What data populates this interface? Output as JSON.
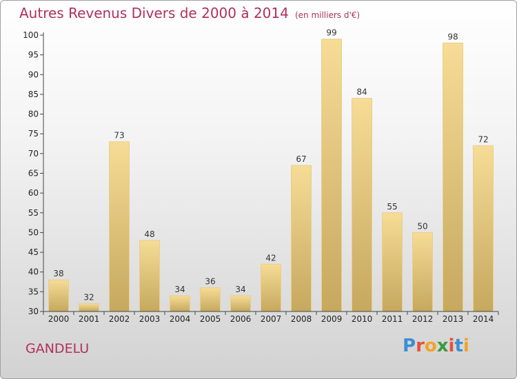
{
  "title": {
    "main": "Autres Revenus Divers de 2000 à 2014",
    "sub": "(en milliers d'€)"
  },
  "location": "GANDELU",
  "logo": {
    "text": "Proxiti",
    "letter_colors": [
      "#3a8fd4",
      "#e8503c",
      "#f2a32c",
      "#3a9a3a",
      "#e8503c",
      "#3a8fd4",
      "#f2a32c"
    ]
  },
  "colors": {
    "title": "#b0305a",
    "bar_light": "#f6dc96",
    "bar_dark": "#c6a85e"
  },
  "chart_data": {
    "type": "bar",
    "categories": [
      "2000",
      "2001",
      "2002",
      "2003",
      "2004",
      "2005",
      "2006",
      "2007",
      "2008",
      "2009",
      "2010",
      "2011",
      "2012",
      "2013",
      "2014"
    ],
    "values": [
      38,
      32,
      73,
      48,
      34,
      36,
      34,
      42,
      67,
      99,
      84,
      55,
      50,
      98,
      72
    ],
    "ylim": [
      30,
      100
    ],
    "yticks": [
      30,
      35,
      40,
      45,
      50,
      55,
      60,
      65,
      70,
      75,
      80,
      85,
      90,
      95,
      100
    ],
    "grid": false
  }
}
